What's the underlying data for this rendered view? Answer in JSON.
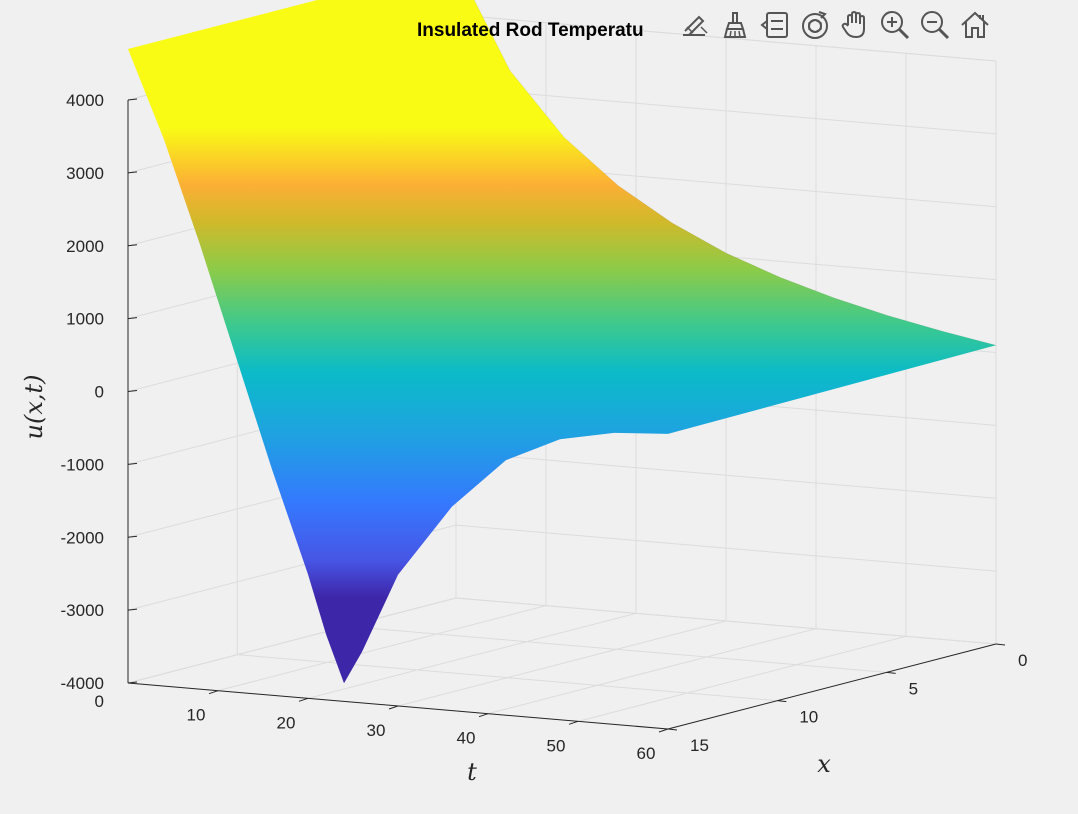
{
  "toolbar": {
    "buttons": [
      {
        "name": "edit-axes-icon"
      },
      {
        "name": "brush-icon"
      },
      {
        "name": "data-tips-icon"
      },
      {
        "name": "rotate-3d-icon"
      },
      {
        "name": "pan-hand-icon"
      },
      {
        "name": "zoom-in-icon"
      },
      {
        "name": "zoom-out-icon"
      },
      {
        "name": "home-icon"
      }
    ]
  },
  "chart_data": {
    "type": "surface",
    "title": "Insulated Rod Temperatu",
    "xlabel": "x",
    "ylabel": "t",
    "zlabel": "u(x,t)",
    "xlim": [
      0,
      15
    ],
    "tlim": [
      0,
      60
    ],
    "zlim": [
      -4000,
      4000
    ],
    "x_ticks": [
      0,
      5,
      10,
      15
    ],
    "t_ticks": [
      10,
      20,
      30,
      40,
      50,
      60
    ],
    "z_ticks": [
      -4000,
      -3000,
      -2000,
      -1000,
      0,
      1000,
      2000,
      3000,
      4000
    ],
    "t_axis_zero_label": "0",
    "grid": true,
    "colormap": "parula",
    "colormap_stops": [
      "#3e26a8",
      "#4755e5",
      "#2b8bfa",
      "#18b0d8",
      "#21c39c",
      "#71ce5d",
      "#c9c227",
      "#fdb42d",
      "#f9fb15"
    ],
    "surface_points": {
      "x0_edge": [
        [
          0,
          4700
        ],
        [
          6,
          3300
        ],
        [
          12,
          2450
        ],
        [
          18,
          1850
        ],
        [
          24,
          1400
        ],
        [
          30,
          1050
        ],
        [
          36,
          780
        ],
        [
          42,
          560
        ],
        [
          48,
          380
        ],
        [
          54,
          230
        ],
        [
          60,
          100
        ]
      ],
      "x15_edge": [
        [
          0,
          4700
        ],
        [
          4,
          3500
        ],
        [
          8,
          2100
        ],
        [
          12,
          600
        ],
        [
          16,
          -900
        ],
        [
          20,
          -2300
        ],
        [
          22,
          -3100
        ],
        [
          24,
          -3750
        ],
        [
          26,
          -3300
        ],
        [
          30,
          -2200
        ],
        [
          36,
          -1200
        ],
        [
          42,
          -500
        ],
        [
          48,
          -150
        ],
        [
          54,
          0
        ],
        [
          60,
          50
        ]
      ]
    }
  }
}
